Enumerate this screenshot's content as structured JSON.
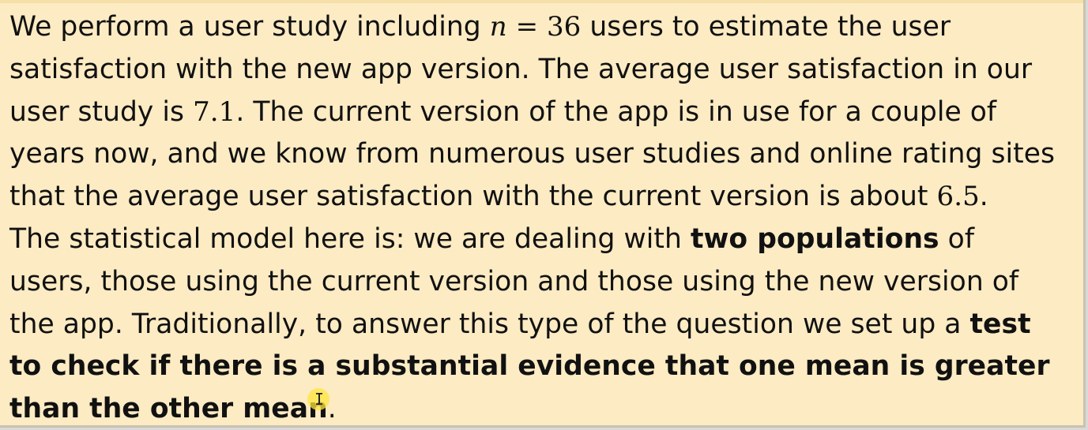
{
  "slide": {
    "background": "#fcebc3",
    "text_color": "#111111",
    "lines": [
      {
        "before": "We perform a user study including ",
        "math_var": "n",
        "math_op": " = ",
        "math_num": "36",
        "after": " users to estimate the user"
      },
      {
        "text": "satisfaction with the new app version.  The average user satisfaction in our"
      },
      {
        "before": "user study is ",
        "math_num": "7.1",
        "after": ".  The current version of the app is in use for a couple of"
      },
      {
        "text": "years now, and we know from numerous user studies and online rating sites"
      },
      {
        "before": "that the average user satisfaction with the current version is about ",
        "math_num": "6.5",
        "after": "."
      },
      {
        "before": "The statistical model here is: we are dealing with ",
        "bold": "two populations",
        "after": " of"
      },
      {
        "text": "users, those using the current version and those using the new version of"
      },
      {
        "before": "the app.  Traditionally, to answer this type of the question we set up a ",
        "bold": "test"
      },
      {
        "bold": "to check if there is a substantial evidence that one mean is greater"
      },
      {
        "bold": "than the other mean",
        "after": "."
      }
    ]
  },
  "cursor": {
    "icon": "text-cursor-icon",
    "glyph": "I",
    "highlight_color": "#ffe63c"
  }
}
